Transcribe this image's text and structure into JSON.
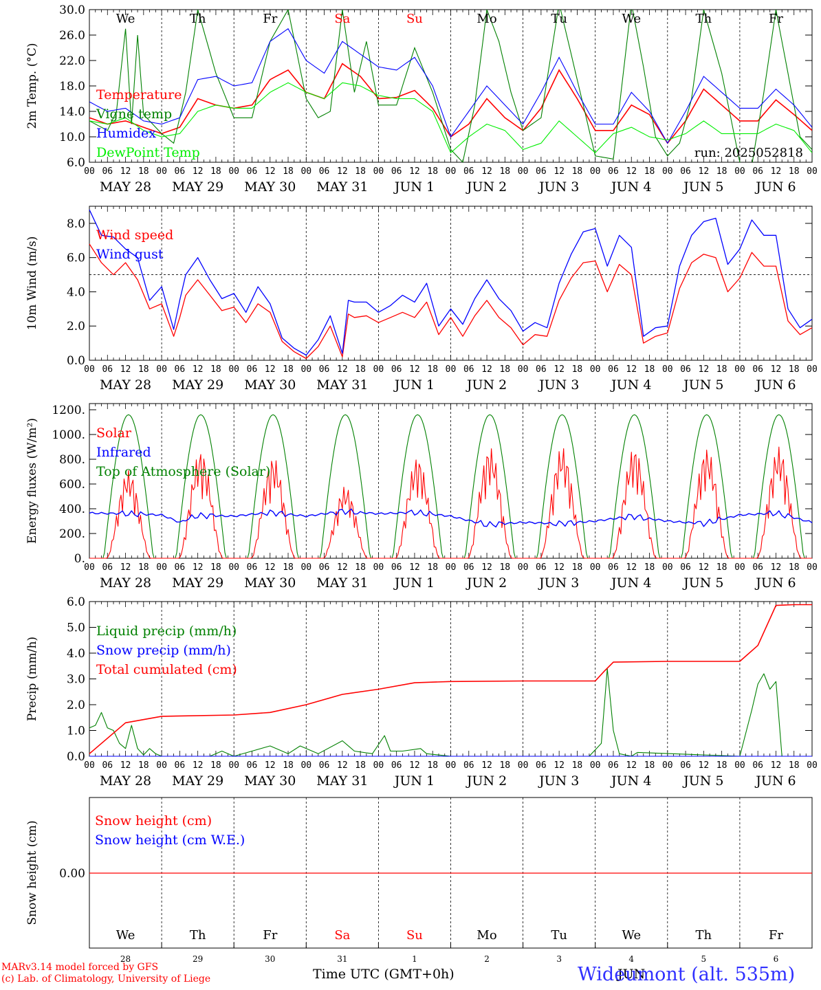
{
  "run_label": "run: 2025052818",
  "x_axis_title": "Time UTC (GMT+0h)",
  "footer": {
    "model_line": "MARv3.14 model forced by GFS",
    "credit_line": "(c) Lab. of Climatology, University of Liege",
    "station_label": "Wideumont (alt. 535m)",
    "month_label": "JUN"
  },
  "x_tick_hours": [
    "00",
    "06",
    "12",
    "18"
  ],
  "day_labels": [
    "MAY 28",
    "MAY 29",
    "MAY 30",
    "MAY 31",
    "JUN  1",
    "JUN  2",
    "JUN  3",
    "JUN  4",
    "JUN  5",
    "JUN  6"
  ],
  "weekdays": [
    {
      "name": "We",
      "color": "#000000"
    },
    {
      "name": "Th",
      "color": "#000000"
    },
    {
      "name": "Fr",
      "color": "#000000"
    },
    {
      "name": "Sa",
      "color": "#ff0000"
    },
    {
      "name": "Su",
      "color": "#ff0000"
    },
    {
      "name": "Mo",
      "color": "#000000"
    },
    {
      "name": "Tu",
      "color": "#000000"
    },
    {
      "name": "We",
      "color": "#000000"
    },
    {
      "name": "Th",
      "color": "#000000"
    },
    {
      "name": "Fr",
      "color": "#000000"
    }
  ],
  "day_numbers": [
    "28",
    "29",
    "30",
    "31",
    "1",
    "2",
    "3",
    "4",
    "5",
    "6"
  ],
  "chart_data": [
    {
      "type": "line",
      "ylabel": "2m Temp. (°C)",
      "ylim": [
        6,
        30
      ],
      "yticks": [
        "6.0",
        "10.0",
        "14.0",
        "18.0",
        "22.0",
        "26.0",
        "30.0"
      ],
      "x_unit": "hours since MAY 28 00 UTC",
      "series": [
        {
          "name": "Temperature",
          "color": "#ff0000",
          "x": [
            0,
            6,
            12,
            18,
            24,
            30,
            36,
            42,
            48,
            54,
            60,
            66,
            72,
            78,
            84,
            90,
            96,
            102,
            108,
            114,
            120,
            126,
            132,
            138,
            144,
            150,
            156,
            162,
            168,
            174,
            180,
            186,
            192,
            198,
            204,
            210,
            216,
            222,
            228,
            234,
            240
          ],
          "y": [
            13,
            12,
            12.5,
            11.5,
            10.5,
            11.5,
            16,
            15,
            14.5,
            15,
            19,
            20.5,
            17,
            16,
            21.5,
            19.5,
            16,
            16.2,
            17.3,
            14.5,
            10,
            12,
            16,
            13,
            11,
            14.5,
            20.5,
            16,
            11,
            11,
            15,
            13.5,
            9,
            12.5,
            17.5,
            15,
            12.5,
            12.5,
            15.8,
            13.5,
            11
          ]
        },
        {
          "name": "Vigne temp",
          "color": "#008000",
          "x": [
            0,
            6,
            9,
            12,
            14,
            16,
            18,
            24,
            28,
            32,
            36,
            42,
            48,
            54,
            60,
            66,
            72,
            76,
            80,
            84,
            88,
            92,
            96,
            102,
            108,
            114,
            120,
            124,
            128,
            132,
            136,
            140,
            144,
            150,
            156,
            162,
            168,
            174,
            180,
            184,
            188,
            192,
            196,
            200,
            204,
            210,
            216,
            220,
            224,
            228,
            232,
            236,
            240
          ],
          "y": [
            12.5,
            11,
            14,
            27,
            12,
            26,
            13.5,
            10.5,
            9,
            17,
            30,
            20,
            13,
            13,
            25,
            30,
            16,
            13,
            14,
            30,
            17,
            25,
            15,
            15,
            24,
            17,
            8,
            6,
            15,
            30,
            25,
            17,
            11,
            13,
            31,
            19,
            7,
            6.5,
            31,
            21,
            10,
            7,
            9,
            16,
            30,
            20,
            6,
            5.5,
            17,
            30,
            20,
            10,
            8
          ]
        },
        {
          "name": "Humidex",
          "color": "#0000ff",
          "x": [
            0,
            6,
            12,
            18,
            24,
            30,
            36,
            42,
            48,
            54,
            60,
            66,
            72,
            78,
            84,
            90,
            96,
            102,
            108,
            114,
            120,
            126,
            132,
            138,
            144,
            150,
            156,
            162,
            168,
            174,
            180,
            186,
            192,
            198,
            204,
            210,
            216,
            222,
            228,
            234,
            240
          ],
          "y": [
            15.5,
            14,
            14.5,
            12.5,
            12,
            13,
            19,
            19.5,
            18,
            18.5,
            25,
            27,
            22,
            20,
            25,
            23,
            21,
            20.5,
            22.5,
            18,
            10,
            14,
            18,
            15,
            12,
            17,
            22.5,
            17,
            12,
            12,
            17,
            14,
            9,
            14,
            19.5,
            17,
            14.5,
            14.5,
            17.5,
            15,
            11.5
          ]
        },
        {
          "name": "DewPoint Temp",
          "color": "#00ee00",
          "x": [
            0,
            6,
            12,
            18,
            24,
            30,
            36,
            42,
            48,
            54,
            60,
            66,
            72,
            78,
            84,
            90,
            96,
            102,
            108,
            114,
            120,
            126,
            132,
            138,
            144,
            150,
            156,
            162,
            168,
            174,
            180,
            186,
            192,
            198,
            204,
            210,
            216,
            222,
            228,
            234,
            240
          ],
          "y": [
            12.5,
            12,
            13,
            11,
            10,
            10.5,
            14,
            15,
            14.5,
            14.5,
            17,
            18.5,
            17,
            16,
            18.5,
            18,
            16.5,
            16,
            16,
            14,
            7.5,
            10,
            12,
            11,
            8,
            9,
            12.5,
            10,
            7.5,
            10.5,
            11.5,
            10,
            9.5,
            10.5,
            12.5,
            10.5,
            10.5,
            10.5,
            12,
            11,
            7.5
          ]
        }
      ]
    },
    {
      "type": "line",
      "ylabel": "10m Wind (m/s)",
      "ylim": [
        0,
        9
      ],
      "yticks": [
        "0.0",
        "2.0",
        "4.0",
        "6.0",
        "8.0"
      ],
      "reference_line": 5,
      "series": [
        {
          "name": "Wind speed",
          "color": "#ff0000",
          "x": [
            0,
            4,
            8,
            12,
            16,
            20,
            24,
            28,
            30,
            32,
            36,
            40,
            44,
            48,
            52,
            56,
            60,
            64,
            68,
            72,
            76,
            80,
            84,
            86,
            88,
            92,
            96,
            100,
            104,
            108,
            112,
            116,
            120,
            124,
            128,
            132,
            136,
            140,
            144,
            148,
            152,
            156,
            160,
            164,
            168,
            172,
            176,
            180,
            184,
            188,
            192,
            196,
            200,
            204,
            208,
            212,
            216,
            220,
            224,
            228,
            232,
            236,
            240
          ],
          "y": [
            6.8,
            5.7,
            5,
            5.7,
            4.7,
            3,
            3.3,
            1.4,
            2.5,
            3.8,
            4.7,
            3.8,
            2.9,
            3.1,
            2.2,
            3.3,
            2.8,
            1.1,
            0.5,
            0.1,
            0.8,
            2,
            0.2,
            2.7,
            2.5,
            2.6,
            2.2,
            2.5,
            2.8,
            2.5,
            3.4,
            1.5,
            2.5,
            1.4,
            2.6,
            3.5,
            2.5,
            1.9,
            0.9,
            1.5,
            1.4,
            3.5,
            4.8,
            5.7,
            5.8,
            4,
            5.6,
            5,
            1,
            1.4,
            1.6,
            4.2,
            5.7,
            6.2,
            6,
            4,
            4.8,
            6.3,
            5.5,
            5.5,
            2.3,
            1.5,
            1.9
          ]
        },
        {
          "name": "Wind gust",
          "color": "#0000ff",
          "x": [
            0,
            4,
            8,
            12,
            16,
            20,
            24,
            28,
            30,
            32,
            36,
            40,
            44,
            48,
            52,
            56,
            60,
            64,
            68,
            72,
            76,
            80,
            84,
            86,
            88,
            92,
            96,
            100,
            104,
            108,
            112,
            116,
            120,
            124,
            128,
            132,
            136,
            140,
            144,
            148,
            152,
            156,
            160,
            164,
            168,
            172,
            176,
            180,
            184,
            188,
            192,
            196,
            200,
            204,
            208,
            212,
            216,
            220,
            224,
            228,
            232,
            236,
            240
          ],
          "y": [
            8.8,
            7.3,
            7.2,
            6.5,
            6,
            3.5,
            4.3,
            1.8,
            3.5,
            5,
            6,
            4.7,
            3.6,
            3.9,
            2.8,
            4.3,
            3.3,
            1.3,
            0.7,
            0.3,
            1.2,
            2.6,
            0.4,
            3.5,
            3.4,
            3.4,
            2.8,
            3.2,
            3.8,
            3.4,
            4.5,
            2,
            3,
            2.1,
            3.6,
            4.7,
            3.6,
            2.9,
            1.7,
            2.2,
            1.9,
            4.5,
            6.2,
            7.5,
            7.7,
            5.5,
            7.3,
            6.6,
            1.4,
            1.9,
            2,
            5.5,
            7.3,
            8.1,
            8.3,
            5.6,
            6.5,
            8.2,
            7.3,
            7.3,
            3,
            1.9,
            2.4
          ]
        }
      ]
    },
    {
      "type": "line",
      "ylabel": "Energy fluxes (W/m²)",
      "ylim": [
        0,
        1250
      ],
      "yticks": [
        "0.",
        "200.",
        "400.",
        "600.",
        "800.",
        "1000.",
        "1200."
      ],
      "series": [
        {
          "name": "Solar",
          "color": "#ff0000",
          "peaks_per_day": [
            710,
            870,
            820,
            580,
            820,
            900,
            900,
            900,
            890,
            900
          ]
        },
        {
          "name": "Infrared",
          "color": "#0000ff",
          "x": [
            0,
            12,
            24,
            30,
            36,
            48,
            60,
            72,
            84,
            96,
            108,
            120,
            132,
            144,
            156,
            168,
            180,
            192,
            204,
            216,
            228,
            240
          ],
          "y": [
            365,
            360,
            350,
            290,
            345,
            340,
            370,
            340,
            380,
            360,
            370,
            340,
            270,
            290,
            280,
            300,
            340,
            300,
            280,
            350,
            365,
            290
          ]
        },
        {
          "name": "Top of Atmosphere (Solar)",
          "color": "#008000",
          "daily_peak": 1160,
          "day_length_hours": 16.4
        }
      ]
    },
    {
      "type": "line",
      "ylabel": "Precip (mm/h)",
      "ylim": [
        0,
        6
      ],
      "yticks": [
        "0.0",
        "1.0",
        "2.0",
        "3.0",
        "4.0",
        "5.0",
        "6.0"
      ],
      "series": [
        {
          "name": "Liquid precip (mm/h)",
          "color": "#008000",
          "x": [
            0,
            2,
            4,
            6,
            8,
            10,
            12,
            14,
            16,
            18,
            20,
            22,
            24,
            40,
            44,
            48,
            60,
            66,
            70,
            76,
            84,
            88,
            94,
            98,
            100,
            104,
            110,
            112,
            120,
            166,
            170,
            172,
            174,
            176,
            180,
            182,
            216,
            220,
            222,
            224,
            226,
            228,
            230
          ],
          "y": [
            1.1,
            1.2,
            1.7,
            1.1,
            1,
            0.5,
            0.3,
            1.2,
            0.3,
            0.05,
            0.3,
            0.1,
            0,
            0,
            0.2,
            0,
            0.4,
            0.1,
            0.4,
            0.1,
            0.6,
            0.2,
            0.1,
            0.8,
            0.2,
            0.2,
            0.3,
            0.1,
            0,
            0,
            0.5,
            3.4,
            1,
            0.1,
            0,
            0.15,
            0,
            1.8,
            2.8,
            3.2,
            2.6,
            2.9,
            0
          ]
        },
        {
          "name": "Snow precip (mm/h)",
          "color": "#0000ff",
          "x": [
            0,
            240
          ],
          "y": [
            0,
            0
          ]
        },
        {
          "name": "Total cumulated (cm)",
          "color": "#ff0000",
          "x": [
            0,
            12,
            24,
            48,
            60,
            72,
            84,
            96,
            108,
            120,
            144,
            168,
            171,
            174,
            192,
            216,
            222,
            228,
            234,
            240
          ],
          "y": [
            0.1,
            1.3,
            1.55,
            1.6,
            1.7,
            2,
            2.4,
            2.6,
            2.85,
            2.9,
            2.92,
            2.92,
            3.3,
            3.65,
            3.68,
            3.68,
            4.3,
            5.85,
            5.88,
            5.88
          ]
        }
      ]
    },
    {
      "type": "line",
      "ylabel": "Snow height (cm)",
      "yticks": [
        "0.00"
      ],
      "series": [
        {
          "name": "Snow height (cm)",
          "color": "#ff0000",
          "x": [
            0,
            240
          ],
          "y": [
            0,
            0
          ]
        },
        {
          "name": "Snow height (cm W.E.)",
          "color": "#0000ff",
          "x": [
            0,
            240
          ],
          "y": [
            0,
            0
          ]
        }
      ]
    }
  ]
}
